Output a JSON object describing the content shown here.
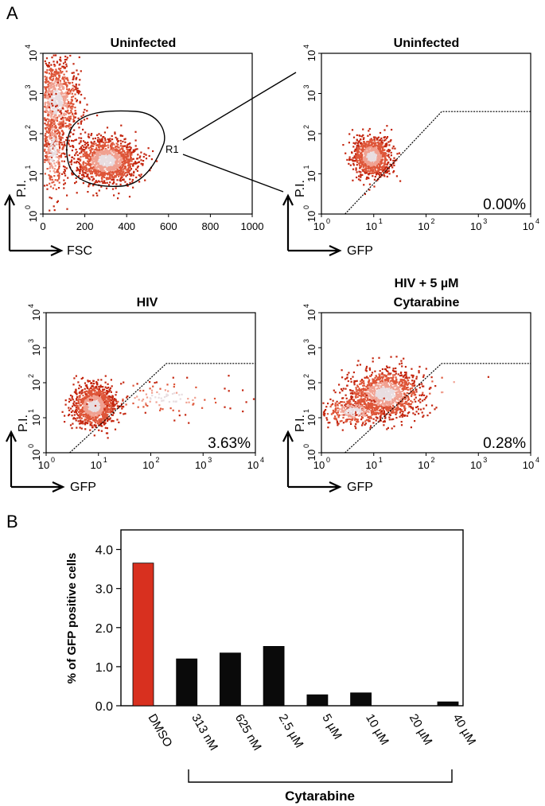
{
  "panel_labels": {
    "a": "A",
    "b": "B"
  },
  "colors": {
    "dot_dark": "#c4260f",
    "dot_mid": "#de5538",
    "dot_light": "#f0a090",
    "core": "#e8dde0",
    "bar_red": "#d8301f",
    "bar_black": "#0a0a0a"
  },
  "chart_data": [
    {
      "type": "scatter",
      "title": "Uninfected",
      "xlabel": "FSC",
      "ylabel": "P.I.",
      "xscale": "linear",
      "xlim": [
        0,
        1000
      ],
      "xticks": [
        "0",
        "200",
        "400",
        "600",
        "800",
        "1000"
      ],
      "yscale": "log",
      "ylim": [
        1,
        10000
      ],
      "yticks": [
        {
          "base": "10",
          "exp": "0"
        },
        {
          "base": "10",
          "exp": "1"
        },
        {
          "base": "10",
          "exp": "2"
        },
        {
          "base": "10",
          "exp": "3"
        },
        {
          "base": "10",
          "exp": "4"
        }
      ],
      "gate_label": "R1",
      "clusters": [
        {
          "cx": 300,
          "cy_log": 1.35,
          "sx": 75,
          "sy": 0.28,
          "n": 1300
        },
        {
          "cx": 60,
          "cy_log": 2.8,
          "sx": 55,
          "sy": 0.55,
          "n": 1000
        },
        {
          "cx": 45,
          "cy_log": 1.6,
          "sx": 30,
          "sy": 0.6,
          "n": 300
        }
      ]
    },
    {
      "type": "scatter",
      "title": "Uninfected",
      "xlabel": "GFP",
      "ylabel": "P.I.",
      "xscale": "log",
      "xlim": [
        1,
        10000
      ],
      "xticks": [
        {
          "base": "10",
          "exp": "0"
        },
        {
          "base": "10",
          "exp": "1"
        },
        {
          "base": "10",
          "exp": "2"
        },
        {
          "base": "10",
          "exp": "3"
        },
        {
          "base": "10",
          "exp": "4"
        }
      ],
      "yscale": "log",
      "ylim": [
        1,
        10000
      ],
      "yticks": [
        {
          "base": "10",
          "exp": "0"
        },
        {
          "base": "10",
          "exp": "1"
        },
        {
          "base": "10",
          "exp": "2"
        },
        {
          "base": "10",
          "exp": "3"
        },
        {
          "base": "10",
          "exp": "4"
        }
      ],
      "percent_label": "0.00%",
      "clusters": [
        {
          "cx_log": 0.95,
          "cy_log": 1.45,
          "sx": 0.18,
          "sy": 0.25,
          "n": 900
        }
      ]
    },
    {
      "type": "scatter",
      "title": "HIV",
      "xlabel": "GFP",
      "ylabel": "P.I.",
      "xscale": "log",
      "xlim": [
        1,
        10000
      ],
      "xticks": [
        {
          "base": "10",
          "exp": "0"
        },
        {
          "base": "10",
          "exp": "1"
        },
        {
          "base": "10",
          "exp": "2"
        },
        {
          "base": "10",
          "exp": "3"
        },
        {
          "base": "10",
          "exp": "4"
        }
      ],
      "yscale": "log",
      "ylim": [
        1,
        10000
      ],
      "yticks": [
        {
          "base": "10",
          "exp": "0"
        },
        {
          "base": "10",
          "exp": "1"
        },
        {
          "base": "10",
          "exp": "2"
        },
        {
          "base": "10",
          "exp": "3"
        },
        {
          "base": "10",
          "exp": "4"
        }
      ],
      "percent_label": "3.63%",
      "clusters": [
        {
          "cx_log": 0.9,
          "cy_log": 1.35,
          "sx": 0.2,
          "sy": 0.3,
          "n": 1100
        },
        {
          "cx_log": 2.3,
          "cy_log": 1.6,
          "sx": 0.7,
          "sy": 0.25,
          "n": 110
        }
      ]
    },
    {
      "type": "scatter",
      "title": "HIV + 5 µM\nCytarabine",
      "xlabel": "GFP",
      "ylabel": "P.I.",
      "xscale": "log",
      "xlim": [
        1,
        10000
      ],
      "xticks": [
        {
          "base": "10",
          "exp": "0"
        },
        {
          "base": "10",
          "exp": "1"
        },
        {
          "base": "10",
          "exp": "2"
        },
        {
          "base": "10",
          "exp": "3"
        },
        {
          "base": "10",
          "exp": "4"
        }
      ],
      "yscale": "log",
      "ylim": [
        1,
        10000
      ],
      "yticks": [
        {
          "base": "10",
          "exp": "0"
        },
        {
          "base": "10",
          "exp": "1"
        },
        {
          "base": "10",
          "exp": "2"
        },
        {
          "base": "10",
          "exp": "3"
        },
        {
          "base": "10",
          "exp": "4"
        }
      ],
      "percent_label": "0.28%",
      "clusters": [
        {
          "cx_log": 1.2,
          "cy_log": 1.7,
          "sx": 0.35,
          "sy": 0.35,
          "n": 1200
        },
        {
          "cx_log": 0.6,
          "cy_log": 1.2,
          "sx": 0.3,
          "sy": 0.2,
          "n": 300
        },
        {
          "cx_log": 2.4,
          "cy_log": 1.9,
          "sx": 0.4,
          "sy": 0.2,
          "n": 8
        }
      ]
    },
    {
      "type": "bar",
      "ylabel": "% of GFP positive cells",
      "ylim": [
        0,
        4.5
      ],
      "yticks": [
        "0.0",
        "1.0",
        "2.0",
        "3.0",
        "4.0"
      ],
      "categories": [
        "DMSO",
        "313 nM",
        "625 nM",
        "2.5 µM",
        "5 µM",
        "10 µM",
        "20 µM",
        "40 µM"
      ],
      "values": [
        3.65,
        1.2,
        1.35,
        1.52,
        0.28,
        0.33,
        0.0,
        0.1
      ],
      "bracket_label": "Cytarabine"
    }
  ]
}
